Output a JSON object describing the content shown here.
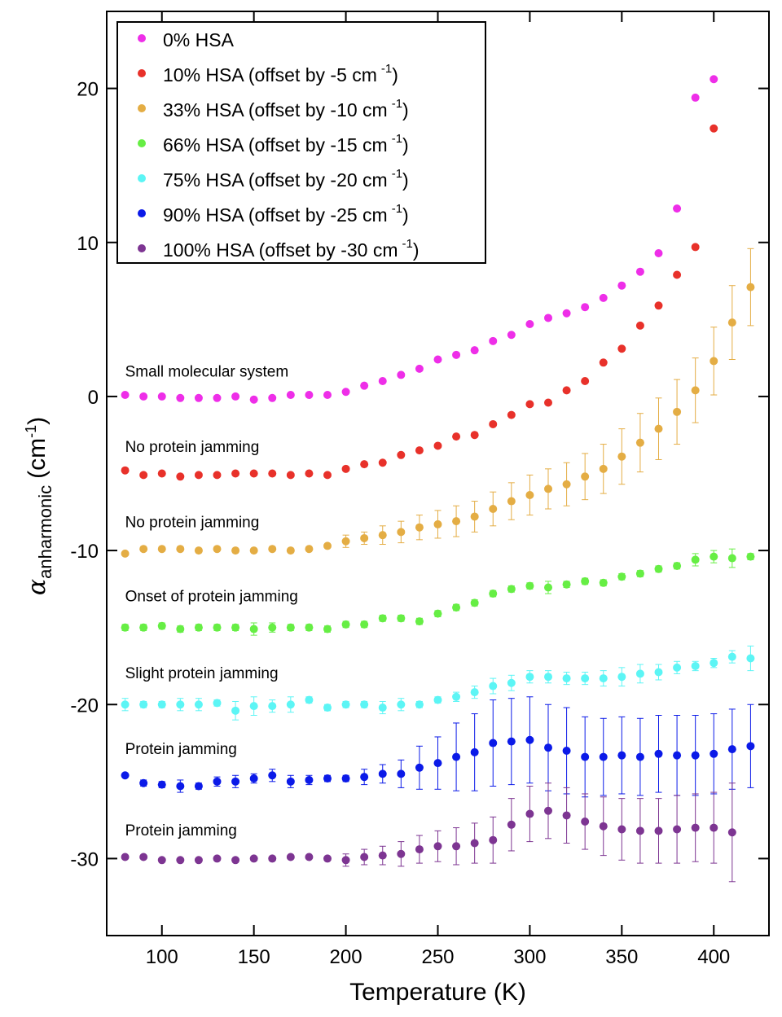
{
  "chart_data": {
    "type": "scatter",
    "title": "",
    "xlabel": "Temperature (K)",
    "ylabel": {
      "symbol": "α",
      "subscript": "anharmonic",
      "unit": "(cm",
      "unit_sup": "-1",
      "unit_close": ")"
    },
    "xlim": [
      70,
      430
    ],
    "ylim": [
      -35,
      25
    ],
    "xticks": [
      100,
      150,
      200,
      250,
      300,
      350,
      400
    ],
    "yticks": [
      -30,
      -20,
      -10,
      0,
      10,
      20
    ],
    "grid": false,
    "legend_position": "top-left",
    "annotations": [
      {
        "text": "Small molecular system",
        "x": 80,
        "y": 1.3
      },
      {
        "text": "No protein jamming",
        "x": 80,
        "y": -3.6
      },
      {
        "text": "No protein jamming",
        "x": 80,
        "y": -8.5
      },
      {
        "text": "Onset of protein jamming",
        "x": 80,
        "y": -13.3
      },
      {
        "text": "Slight protein jamming",
        "x": 80,
        "y": -18.3
      },
      {
        "text": "Protein jamming",
        "x": 80,
        "y": -23.2
      },
      {
        "text": "Protein jamming",
        "x": 80,
        "y": -28.5
      }
    ],
    "series": [
      {
        "name": "0% HSA",
        "offset_label": "",
        "color": "#ee2ee8",
        "x": [
          80,
          90,
          100,
          110,
          120,
          130,
          140,
          150,
          160,
          170,
          180,
          190,
          200,
          210,
          220,
          230,
          240,
          250,
          260,
          270,
          280,
          290,
          300,
          310,
          320,
          330,
          340,
          350,
          360,
          370,
          380,
          390,
          400
        ],
        "y": [
          0.1,
          0.0,
          0.0,
          -0.1,
          -0.1,
          -0.1,
          0.0,
          -0.2,
          -0.1,
          0.1,
          0.1,
          0.1,
          0.3,
          0.7,
          1.0,
          1.4,
          1.8,
          2.4,
          2.7,
          3.0,
          3.6,
          4.0,
          4.7,
          5.1,
          5.4,
          5.8,
          6.4,
          7.2,
          8.1,
          9.3,
          12.2,
          19.4,
          20.6
        ],
        "err": [
          0,
          0,
          0,
          0,
          0,
          0,
          0,
          0,
          0,
          0,
          0,
          0,
          0,
          0,
          0,
          0,
          0,
          0,
          0,
          0,
          0,
          0,
          0,
          0,
          0,
          0,
          0,
          0,
          0,
          0,
          0,
          0,
          0
        ]
      },
      {
        "name": "10% HSA (offset by -5 cm",
        "offset_label": ")",
        "color": "#e8312a",
        "x": [
          80,
          90,
          100,
          110,
          120,
          130,
          140,
          150,
          160,
          170,
          180,
          190,
          200,
          210,
          220,
          230,
          240,
          250,
          260,
          270,
          280,
          290,
          300,
          310,
          320,
          330,
          340,
          350,
          360,
          370,
          380,
          390,
          400
        ],
        "y": [
          -4.8,
          -5.1,
          -5.0,
          -5.2,
          -5.1,
          -5.1,
          -5.0,
          -5.0,
          -5.0,
          -5.1,
          -5.0,
          -5.1,
          -4.7,
          -4.4,
          -4.3,
          -3.8,
          -3.5,
          -3.2,
          -2.6,
          -2.5,
          -1.8,
          -1.2,
          -0.5,
          -0.4,
          0.4,
          1.0,
          2.2,
          3.1,
          4.6,
          5.9,
          7.9,
          9.7,
          17.4
        ],
        "err": [
          0,
          0,
          0,
          0,
          0,
          0,
          0,
          0,
          0,
          0,
          0,
          0,
          0,
          0,
          0,
          0,
          0,
          0,
          0,
          0,
          0,
          0,
          0,
          0,
          0,
          0,
          0,
          0,
          0,
          0,
          0,
          0,
          0
        ]
      },
      {
        "name": "33% HSA (offset by -10 cm",
        "offset_label": ")",
        "color": "#e4ad44",
        "x": [
          80,
          90,
          100,
          110,
          120,
          130,
          140,
          150,
          160,
          170,
          180,
          190,
          200,
          210,
          220,
          230,
          240,
          250,
          260,
          270,
          280,
          290,
          300,
          310,
          320,
          330,
          340,
          350,
          360,
          370,
          380,
          390,
          400,
          410,
          420
        ],
        "y": [
          -10.2,
          -9.9,
          -9.9,
          -9.9,
          -10.0,
          -9.9,
          -10.0,
          -10.0,
          -9.9,
          -10.0,
          -9.9,
          -9.7,
          -9.4,
          -9.2,
          -9.0,
          -8.8,
          -8.5,
          -8.3,
          -8.1,
          -7.8,
          -7.3,
          -6.8,
          -6.4,
          -6.0,
          -5.7,
          -5.2,
          -4.7,
          -3.9,
          -3.0,
          -2.1,
          -1.0,
          0.4,
          2.3,
          4.8,
          7.1
        ],
        "err": [
          0,
          0,
          0,
          0,
          0,
          0,
          0,
          0,
          0,
          0,
          0,
          0,
          0.4,
          0.4,
          0.6,
          0.7,
          0.8,
          0.9,
          1.0,
          1.0,
          1.1,
          1.2,
          1.3,
          1.3,
          1.4,
          1.5,
          1.6,
          1.8,
          1.9,
          2.0,
          2.1,
          2.1,
          2.2,
          2.4,
          2.5
        ]
      },
      {
        "name": "66% HSA (offset by -15 cm",
        "offset_label": ")",
        "color": "#66ee44",
        "x": [
          80,
          90,
          100,
          110,
          120,
          130,
          140,
          150,
          160,
          170,
          180,
          190,
          200,
          210,
          220,
          230,
          240,
          250,
          260,
          270,
          280,
          290,
          300,
          310,
          320,
          330,
          340,
          350,
          360,
          370,
          380,
          390,
          400,
          410,
          420
        ],
        "y": [
          -15.0,
          -15.0,
          -14.9,
          -15.1,
          -15.0,
          -15.0,
          -15.0,
          -15.1,
          -15.0,
          -15.0,
          -15.0,
          -15.1,
          -14.8,
          -14.8,
          -14.4,
          -14.4,
          -14.6,
          -14.1,
          -13.7,
          -13.4,
          -12.8,
          -12.5,
          -12.3,
          -12.4,
          -12.2,
          -12.0,
          -12.1,
          -11.7,
          -11.5,
          -11.2,
          -11.0,
          -10.6,
          -10.4,
          -10.5,
          -10.4
        ],
        "err": [
          0.2,
          0.2,
          0.2,
          0.2,
          0.2,
          0.2,
          0.2,
          0.4,
          0.3,
          0.2,
          0.2,
          0.2,
          0.2,
          0.2,
          0.2,
          0.2,
          0.2,
          0.2,
          0.2,
          0.2,
          0.2,
          0.2,
          0.2,
          0.4,
          0.2,
          0.2,
          0.2,
          0.2,
          0.2,
          0.2,
          0.2,
          0.4,
          0.4,
          0.6,
          0.2
        ]
      },
      {
        "name": "75% HSA (offset by -20 cm",
        "offset_label": ")",
        "color": "#5cf5f5",
        "x": [
          80,
          90,
          100,
          110,
          120,
          130,
          140,
          150,
          160,
          170,
          180,
          190,
          200,
          210,
          220,
          230,
          240,
          250,
          260,
          270,
          280,
          290,
          300,
          310,
          320,
          330,
          340,
          350,
          360,
          370,
          380,
          390,
          400,
          410,
          420
        ],
        "y": [
          -20.0,
          -20.0,
          -20.0,
          -20.0,
          -20.0,
          -19.9,
          -20.4,
          -20.1,
          -20.1,
          -20.0,
          -19.7,
          -20.2,
          -20.0,
          -20.0,
          -20.2,
          -20.0,
          -20.0,
          -19.7,
          -19.5,
          -19.2,
          -18.8,
          -18.6,
          -18.2,
          -18.2,
          -18.3,
          -18.3,
          -18.3,
          -18.2,
          -18.0,
          -17.9,
          -17.6,
          -17.5,
          -17.3,
          -16.9,
          -17.0
        ],
        "err": [
          0.4,
          0.2,
          0.2,
          0.4,
          0.4,
          0.2,
          0.6,
          0.6,
          0.4,
          0.5,
          0.2,
          0.2,
          0.2,
          0.2,
          0.4,
          0.4,
          0.2,
          0.2,
          0.3,
          0.4,
          0.5,
          0.5,
          0.4,
          0.4,
          0.4,
          0.4,
          0.5,
          0.6,
          0.6,
          0.5,
          0.4,
          0.3,
          0.3,
          0.4,
          0.8
        ]
      },
      {
        "name": "90% HSA (offset by -25 cm",
        "offset_label": ")",
        "color": "#0b1ae8",
        "x": [
          80,
          90,
          100,
          110,
          120,
          130,
          140,
          150,
          160,
          170,
          180,
          190,
          200,
          210,
          220,
          230,
          240,
          250,
          260,
          270,
          280,
          290,
          300,
          310,
          320,
          330,
          340,
          350,
          360,
          370,
          380,
          390,
          400,
          410,
          420
        ],
        "y": [
          -24.6,
          -25.1,
          -25.2,
          -25.3,
          -25.3,
          -25.0,
          -25.0,
          -24.8,
          -24.6,
          -25.0,
          -24.9,
          -24.8,
          -24.8,
          -24.7,
          -24.5,
          -24.5,
          -24.1,
          -23.8,
          -23.4,
          -23.1,
          -22.5,
          -22.4,
          -22.3,
          -22.8,
          -23.0,
          -23.4,
          -23.4,
          -23.3,
          -23.4,
          -23.2,
          -23.3,
          -23.3,
          -23.2,
          -22.9,
          -22.7
        ],
        "err": [
          0,
          0.2,
          0.2,
          0.4,
          0.2,
          0.3,
          0.4,
          0.3,
          0.4,
          0.4,
          0.3,
          0.2,
          0.2,
          0.5,
          0.6,
          0.9,
          1.4,
          1.7,
          2.2,
          2.5,
          2.8,
          2.8,
          2.8,
          2.8,
          2.8,
          2.6,
          2.5,
          2.5,
          2.5,
          2.5,
          2.6,
          2.6,
          2.6,
          2.6,
          2.7
        ]
      },
      {
        "name": "100% HSA (offset by -30 cm",
        "offset_label": ")",
        "color": "#7d3592",
        "x": [
          80,
          90,
          100,
          110,
          120,
          130,
          140,
          150,
          160,
          170,
          180,
          190,
          200,
          210,
          220,
          230,
          240,
          250,
          260,
          270,
          280,
          290,
          300,
          310,
          320,
          330,
          340,
          350,
          360,
          370,
          380,
          390,
          400,
          410
        ],
        "y": [
          -29.9,
          -29.9,
          -30.1,
          -30.1,
          -30.1,
          -30.0,
          -30.1,
          -30.0,
          -30.0,
          -29.9,
          -29.9,
          -30.0,
          -30.1,
          -29.9,
          -29.8,
          -29.7,
          -29.4,
          -29.2,
          -29.2,
          -29.0,
          -28.8,
          -27.8,
          -27.1,
          -26.9,
          -27.2,
          -27.6,
          -27.9,
          -28.1,
          -28.2,
          -28.2,
          -28.1,
          -28.0,
          -28.0,
          -28.3
        ],
        "err": [
          0,
          0,
          0,
          0,
          0,
          0,
          0,
          0,
          0,
          0,
          0,
          0,
          0.4,
          0.5,
          0.6,
          0.8,
          0.9,
          1.0,
          1.2,
          1.3,
          1.5,
          1.7,
          1.8,
          1.8,
          1.8,
          1.8,
          1.9,
          2.0,
          2.1,
          2.1,
          2.2,
          2.2,
          2.3,
          3.2
        ]
      }
    ]
  }
}
